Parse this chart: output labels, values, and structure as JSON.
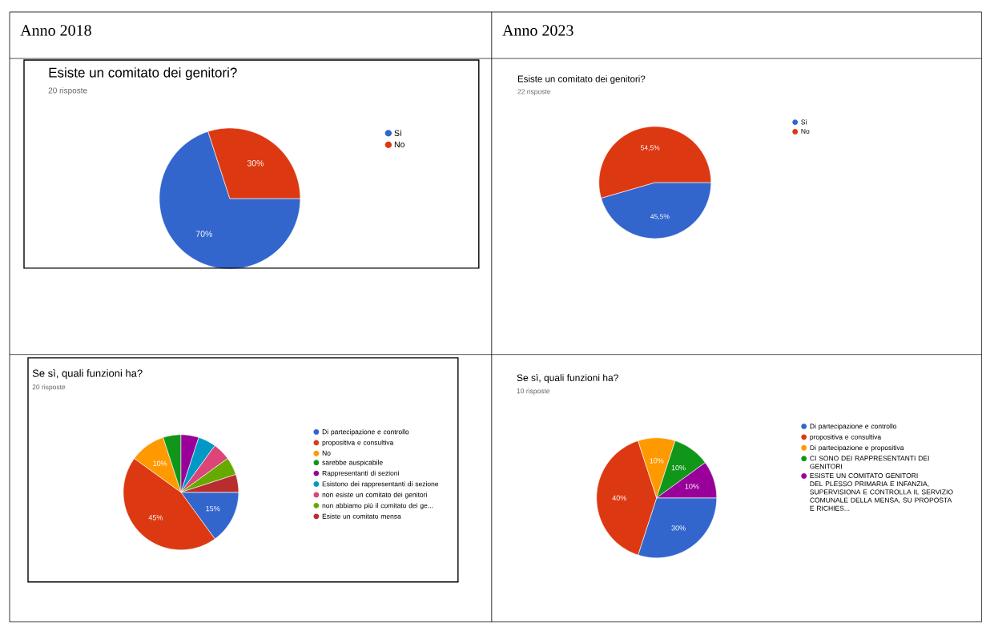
{
  "chart_data": [
    {
      "type": "pie",
      "annotations": [
        "Anno 2018"
      ],
      "title": "Esiste un comitato dei genitori?",
      "subtitle": "20 risposte",
      "categories": [
        "Sì",
        "No"
      ],
      "values": [
        70,
        30
      ],
      "colors": [
        "#3366cc",
        "#dc3912"
      ],
      "value_labels": [
        "70%",
        "30%"
      ],
      "legend": "right"
    },
    {
      "type": "pie",
      "annotations": [
        "Anno 2023"
      ],
      "title": "Esiste un comitato dei genitori?",
      "subtitle": "22 risposte",
      "categories": [
        "Sì",
        "No"
      ],
      "values": [
        45.5,
        54.5
      ],
      "colors": [
        "#3366cc",
        "#dc3912"
      ],
      "value_labels": [
        "45,5%",
        "54,5%"
      ],
      "legend": "right"
    },
    {
      "type": "pie",
      "title": "Se sì, quali funzioni ha?",
      "subtitle": "20 risposte",
      "categories": [
        "Di partecipazione e controllo",
        "propositiva e consultiva",
        "No",
        "sarebbe auspicabile",
        "Rappresentanti di sezioni",
        "Esistono dei rappresentanti di sezione",
        "non esiste un comitato dei genitori",
        "non abbiamo più il comitato dei ge...",
        "Esiste un comitato mensa"
      ],
      "values": [
        15,
        45,
        10,
        5,
        5,
        5,
        5,
        5,
        5
      ],
      "colors": [
        "#3366cc",
        "#dc3912",
        "#ff9900",
        "#109618",
        "#990099",
        "#0099c6",
        "#dd4477",
        "#66aa00",
        "#b82e2e"
      ],
      "value_labels": [
        "15%",
        "45%",
        "10%",
        null,
        null,
        null,
        null,
        null,
        null
      ],
      "legend": "right"
    },
    {
      "type": "pie",
      "title": "Se sì, quali funzioni ha?",
      "subtitle": "10 risposte",
      "categories": [
        "Di partecipazione e controllo",
        "propositiva e consultiva",
        "Di partecipazione e propositiva",
        "CI SONO DEI RAPPRESENTANTI DEI GENITORI",
        "ESISTE UN COMITATO GENITORI DEL PLESSO PRIMARIA E INFANZIA, SUPERVISIONA E CONTROLLA IL SERVIZIO COMUNALE DELLA MENSA, SU PROPOSTA E RICHIES..."
      ],
      "values": [
        30,
        40,
        10,
        10,
        10
      ],
      "colors": [
        "#3366cc",
        "#dc3912",
        "#ff9900",
        "#109618",
        "#990099"
      ],
      "value_labels": [
        "30%",
        "40%",
        "10%",
        "10%",
        "10%"
      ],
      "legend": "right"
    }
  ]
}
